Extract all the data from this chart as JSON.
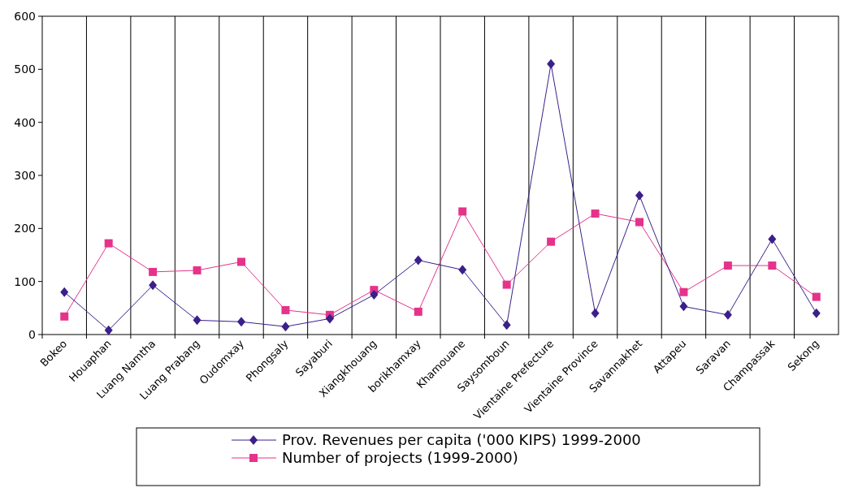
{
  "chart_data": {
    "type": "line",
    "categories": [
      "Bokeo",
      "Houaphan",
      "Luang Namtha",
      "Luang Prabang",
      "Oudomxay",
      "Phongsaly",
      "Sayaburi",
      "Xiangkhouang",
      "borikhamxay",
      "Khamouane",
      "Saysomboun",
      "Vientaine Prefecture",
      "Vientaine Province",
      "Savannakhet",
      "Attapeu",
      "Saravan",
      "Champassak",
      "Sekong"
    ],
    "series": [
      {
        "name": "Prov. Revenues per capita ('000 KIPS) 1999-2000",
        "color": "#3b1f8a",
        "marker": "diamond",
        "values": [
          80,
          8,
          93,
          27,
          24,
          15,
          30,
          75,
          140,
          122,
          18,
          510,
          40,
          262,
          53,
          37,
          180,
          40
        ]
      },
      {
        "name": "Number of projects (1999-2000)",
        "color": "#e5338b",
        "marker": "square",
        "values": [
          34,
          172,
          118,
          121,
          137,
          46,
          37,
          84,
          43,
          232,
          94,
          175,
          228,
          212,
          80,
          130,
          130,
          71
        ]
      }
    ],
    "ylim": [
      0,
      600
    ],
    "yticks": [
      0,
      100,
      200,
      300,
      400,
      500,
      600
    ],
    "grid": "x",
    "legend": "bottom"
  }
}
